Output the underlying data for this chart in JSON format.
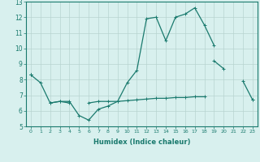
{
  "xlabel": "Humidex (Indice chaleur)",
  "x_values": [
    0,
    1,
    2,
    3,
    4,
    5,
    6,
    7,
    8,
    9,
    10,
    11,
    12,
    13,
    14,
    15,
    16,
    17,
    18,
    19,
    20,
    21,
    22,
    23
  ],
  "line1": [
    8.3,
    7.8,
    6.5,
    6.6,
    6.6,
    5.7,
    5.4,
    6.1,
    6.3,
    6.6,
    7.8,
    8.6,
    11.9,
    12.0,
    10.5,
    12.0,
    12.2,
    12.6,
    11.5,
    10.2,
    null,
    null,
    null,
    null
  ],
  "line2": [
    8.3,
    null,
    null,
    null,
    null,
    null,
    null,
    null,
    null,
    null,
    null,
    null,
    null,
    null,
    null,
    null,
    null,
    null,
    null,
    9.2,
    8.7,
    null,
    7.9,
    6.7
  ],
  "line3": [
    8.3,
    null,
    6.5,
    6.6,
    6.5,
    null,
    6.5,
    6.6,
    6.6,
    6.6,
    6.65,
    6.7,
    6.75,
    6.8,
    6.8,
    6.85,
    6.85,
    6.9,
    6.9,
    null,
    null,
    null,
    null,
    6.7
  ],
  "ylim": [
    5,
    13
  ],
  "xlim": [
    -0.5,
    23.5
  ],
  "yticks": [
    5,
    6,
    7,
    8,
    9,
    10,
    11,
    12,
    13
  ],
  "xticks": [
    0,
    1,
    2,
    3,
    4,
    5,
    6,
    7,
    8,
    9,
    10,
    11,
    12,
    13,
    14,
    15,
    16,
    17,
    18,
    19,
    20,
    21,
    22,
    23
  ],
  "line_color": "#1a7a6e",
  "bg_color": "#d8f0ee",
  "grid_color": "#b8d4d0",
  "figsize": [
    3.2,
    2.0
  ],
  "dpi": 100
}
